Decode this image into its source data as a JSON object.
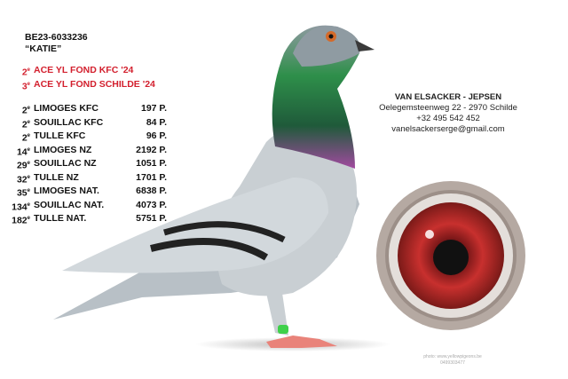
{
  "pigeon": {
    "ring": "BE23-6033236",
    "name": "“KATIE”"
  },
  "titles": [
    {
      "rank": "2",
      "sup": "e",
      "label": "ACE YL FOND KFC '24"
    },
    {
      "rank": "3",
      "sup": "e",
      "label": "ACE YL FOND SCHILDE '24"
    }
  ],
  "results": [
    {
      "rank": "2",
      "sup": "e",
      "race": "LIMOGES KFC",
      "birds": "197 P."
    },
    {
      "rank": "2",
      "sup": "e",
      "race": "SOUILLAC KFC",
      "birds": "84 P."
    },
    {
      "rank": "2",
      "sup": "e",
      "race": "TULLE KFC",
      "birds": "96 P."
    },
    {
      "rank": "14",
      "sup": "e",
      "race": "LIMOGES NZ",
      "birds": "2192 P."
    },
    {
      "rank": "29",
      "sup": "e",
      "race": "SOUILLAC NZ",
      "birds": "1051 P."
    },
    {
      "rank": "32",
      "sup": "e",
      "race": "TULLE NZ",
      "birds": "1701 P."
    },
    {
      "rank": "35",
      "sup": "e",
      "race": "LIMOGES NAT.",
      "birds": "6838 P."
    },
    {
      "rank": "134",
      "sup": "e",
      "race": "SOUILLAC NAT.",
      "birds": "4073 P."
    },
    {
      "rank": "182",
      "sup": "e",
      "race": "TULLE NAT.",
      "birds": "5751 P."
    }
  ],
  "contact": {
    "owner": "VAN ELSACKER - JEPSEN",
    "address": "Oelegemsteenweg 22 - 2970 Schilde",
    "phone": "+32 495 542 452",
    "email": "vanelsackerserge@gmail.com"
  },
  "credit": {
    "line1": "photo: www.yellowpigeons.be",
    "line2": "0499303477"
  },
  "colors": {
    "accent": "#d3202e"
  }
}
